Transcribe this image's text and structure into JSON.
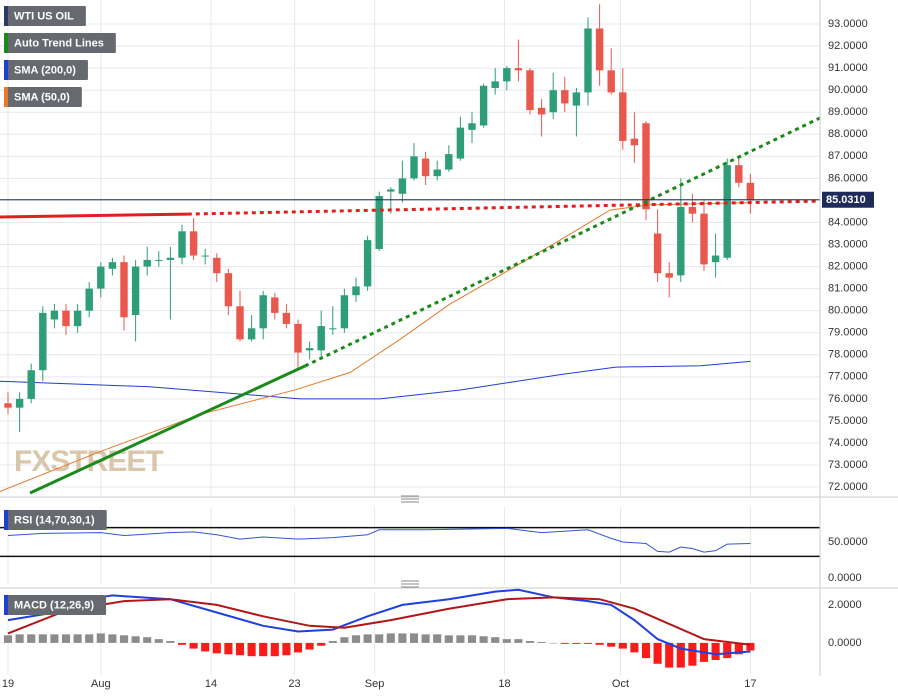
{
  "chart_data": [
    {
      "type": "candlestick",
      "title": "WTI US OIL",
      "title_color": "#2b3a67",
      "watermark": "FXSTREET",
      "grid": true,
      "up_color": "#2e9e78",
      "down_color": "#e8584c",
      "open": [
        75.8,
        75.6,
        76.0,
        77.3,
        79.6,
        80.0,
        79.3,
        80.0,
        81.0,
        81.9,
        82.2,
        79.8,
        82.0,
        82.3,
        82.3,
        82.4,
        83.6,
        82.5,
        82.4,
        81.7,
        80.2,
        78.7,
        79.2,
        80.6,
        79.9,
        79.4,
        78.2,
        78.2,
        79.2,
        79.2,
        80.7,
        81.1,
        82.8,
        85.4,
        85.3,
        86.0,
        86.9,
        86.1,
        86.4,
        86.9,
        88.2,
        88.4,
        90.1,
        90.4,
        91.0,
        90.9,
        89.2,
        89.0,
        90.0,
        89.3,
        89.9,
        92.8,
        90.9,
        89.9,
        87.8,
        88.5,
        83.5,
        81.7,
        81.6,
        84.7,
        84.4,
        82.2,
        82.4,
        86.6,
        85.8
      ],
      "high": [
        76.3,
        76.3,
        77.6,
        80.2,
        80.3,
        80.3,
        80.3,
        81.3,
        82.2,
        82.4,
        82.5,
        82.3,
        82.9,
        82.7,
        82.9,
        83.9,
        84.2,
        82.8,
        82.6,
        81.9,
        80.9,
        79.8,
        80.9,
        80.8,
        80.3,
        79.6,
        78.6,
        80.0,
        80.2,
        81.0,
        81.5,
        83.4,
        85.4,
        85.6,
        86.8,
        87.6,
        87.2,
        86.8,
        87.5,
        88.8,
        89.0,
        90.3,
        91.0,
        91.1,
        92.3,
        91.0,
        89.6,
        90.8,
        90.6,
        90.1,
        93.3,
        93.9,
        91.9,
        91.0,
        89.0,
        88.6,
        84.6,
        82.2,
        86.0,
        85.3,
        85.0,
        83.5,
        86.9,
        87.0,
        86.2
      ],
      "low": [
        75.3,
        74.5,
        75.8,
        76.8,
        79.2,
        78.9,
        79.0,
        79.7,
        80.6,
        81.6,
        79.1,
        78.6,
        81.6,
        82.0,
        79.6,
        82.1,
        82.3,
        82.1,
        81.3,
        79.8,
        78.6,
        78.6,
        78.7,
        79.6,
        79.2,
        77.4,
        77.8,
        77.9,
        78.9,
        79.0,
        80.4,
        80.9,
        82.7,
        84.4,
        84.9,
        85.9,
        85.7,
        85.9,
        86.3,
        86.8,
        87.6,
        88.3,
        89.8,
        90.0,
        90.4,
        88.9,
        87.9,
        88.7,
        89.0,
        87.9,
        89.3,
        90.2,
        89.8,
        87.3,
        86.7,
        84.1,
        81.3,
        80.6,
        81.3,
        84.0,
        81.8,
        81.5,
        82.3,
        85.6,
        84.4
      ],
      "close": [
        75.6,
        76.0,
        77.3,
        79.9,
        80.0,
        79.3,
        80.0,
        81.0,
        82.0,
        82.2,
        79.7,
        82.0,
        82.3,
        82.3,
        82.4,
        83.6,
        82.5,
        82.5,
        81.7,
        80.2,
        78.7,
        79.2,
        80.7,
        79.9,
        79.4,
        78.1,
        78.3,
        79.3,
        79.2,
        80.7,
        81.1,
        83.2,
        85.2,
        85.5,
        86.0,
        87.0,
        86.1,
        86.4,
        87.1,
        88.3,
        88.5,
        90.2,
        90.4,
        91.0,
        90.9,
        89.1,
        88.9,
        90.0,
        89.4,
        89.9,
        92.8,
        90.9,
        89.9,
        87.7,
        87.5,
        84.6,
        81.7,
        81.5,
        84.7,
        84.4,
        82.1,
        82.5,
        86.6,
        85.8,
        85.0
      ],
      "xlim": [
        -0.69,
        70
      ],
      "xticks": [
        {
          "value": 0,
          "label": "19"
        },
        {
          "value": 8,
          "label": "Aug"
        },
        {
          "value": 17.5,
          "label": "14"
        },
        {
          "value": 24.7,
          "label": "23"
        },
        {
          "value": 31.6,
          "label": "Sep"
        },
        {
          "value": 42.8,
          "label": "18"
        },
        {
          "value": 52.8,
          "label": "Oct"
        },
        {
          "value": 64,
          "label": "17"
        }
      ],
      "ylim": [
        71.64,
        94.09
      ],
      "yticks": [
        {
          "value": 72,
          "label": "72.0000"
        },
        {
          "value": 73,
          "label": "73.0000"
        },
        {
          "value": 74,
          "label": "74.0000"
        },
        {
          "value": 75,
          "label": "75.0000"
        },
        {
          "value": 76,
          "label": "76.0000"
        },
        {
          "value": 77,
          "label": "77.0000"
        },
        {
          "value": 78,
          "label": "78.0000"
        },
        {
          "value": 79,
          "label": "79.0000"
        },
        {
          "value": 80,
          "label": "80.0000"
        },
        {
          "value": 81,
          "label": "81.0000"
        },
        {
          "value": 82,
          "label": "82.0000"
        },
        {
          "value": 83,
          "label": "83.0000"
        },
        {
          "value": 84,
          "label": "84.0000"
        },
        {
          "value": 85,
          "label": "85.0000"
        },
        {
          "value": 86,
          "label": "86.0000"
        },
        {
          "value": 87,
          "label": "87.0000"
        },
        {
          "value": 88,
          "label": "88.0000"
        },
        {
          "value": 89,
          "label": "89.0000"
        },
        {
          "value": 90,
          "label": "90.0000"
        },
        {
          "value": 91,
          "label": "91.0000"
        },
        {
          "value": 92,
          "label": "92.0000"
        },
        {
          "value": 93,
          "label": "93.0000"
        }
      ],
      "last_price": {
        "value": 85.031,
        "label": "85.0310",
        "color": "#1c2b5a"
      },
      "trend_lines": {
        "name": "Auto Trend Lines",
        "color": "#1a8a1a",
        "segments": [
          {
            "color": "#1a8a1a",
            "dashed": false,
            "x": [
              1.9,
              25.6
            ],
            "values": [
              71.73,
              77.49
            ]
          },
          {
            "color": "#1a8a1a",
            "dashed": true,
            "x": [
              25.6,
              70
            ],
            "values": [
              77.49,
              88.74
            ]
          },
          {
            "color": "#e02020",
            "dashed": false,
            "x": [
              -0.69,
              15.5
            ],
            "values": [
              84.25,
              84.38
            ]
          },
          {
            "color": "#e02020",
            "dashed": true,
            "x": [
              15.5,
              70
            ],
            "values": [
              84.38,
              84.97
            ]
          }
        ]
      },
      "series": [
        {
          "name": "SMA (200,0)",
          "color": "#1f3fcf",
          "x": [
            -0.69,
            12.2,
            25.2,
            32.1,
            39,
            47.6,
            52.4,
            59.7,
            64
          ],
          "values": [
            76.8,
            76.55,
            76.0,
            76.0,
            76.4,
            77.1,
            77.44,
            77.5,
            77.7
          ]
        },
        {
          "name": "SMA (50,0)",
          "color": "#e8782a",
          "x": [
            -0.69,
            7.9,
            16.6,
            24.7,
            29.5,
            33.8,
            38.1,
            42.4,
            47.6,
            51.9,
            55.3,
            64
          ],
          "values": [
            71.8,
            73.6,
            75.3,
            76.4,
            77.2,
            78.7,
            80.3,
            81.6,
            83.2,
            84.56,
            84.8,
            84.9
          ]
        }
      ]
    },
    {
      "type": "line",
      "title": "RSI (14,70,30,1)",
      "title_color": "#1f3fcf",
      "ylim": [
        -9.7,
        98.6
      ],
      "yticks": [
        {
          "value": 50,
          "label": "50.0000"
        },
        {
          "value": 0,
          "label": "0.0000"
        }
      ],
      "levels": [
        70,
        30
      ],
      "series": [
        {
          "color": "#2f55d4",
          "x": [
            0,
            3,
            8,
            10,
            14,
            16,
            18,
            20,
            22,
            25,
            28,
            31,
            32,
            36,
            40,
            43,
            46,
            50,
            52,
            53,
            55,
            56,
            57,
            58,
            59,
            60,
            61,
            62,
            64
          ],
          "values": [
            59,
            62,
            63,
            59,
            63,
            64,
            60,
            54,
            57,
            54,
            56,
            60,
            67,
            67,
            68,
            69,
            63,
            67,
            55,
            50,
            48,
            37,
            36,
            43,
            41,
            36,
            38,
            47,
            48
          ]
        }
      ]
    },
    {
      "type": "macd",
      "title": "MACD (12,26,9)",
      "title_color": "#1f3fcf",
      "ylim": [
        -1.69,
        2.68
      ],
      "yticks": [
        {
          "value": 2,
          "label": "2.0000"
        },
        {
          "value": 0,
          "label": "0.0000"
        }
      ],
      "positive_color": "#8c8c8c",
      "negative_color": "#ff1a1a",
      "histogram": [
        0.4,
        0.45,
        0.45,
        0.45,
        0.45,
        0.45,
        0.45,
        0.45,
        0.5,
        0.45,
        0.4,
        0.35,
        0.3,
        0.2,
        0.1,
        -0.1,
        -0.3,
        -0.45,
        -0.55,
        -0.6,
        -0.65,
        -0.7,
        -0.7,
        -0.7,
        -0.65,
        -0.5,
        -0.35,
        -0.15,
        0.1,
        0.3,
        0.4,
        0.45,
        0.45,
        0.5,
        0.5,
        0.5,
        0.45,
        0.45,
        0.4,
        0.4,
        0.4,
        0.35,
        0.3,
        0.2,
        0.2,
        0.1,
        0.05,
        0.0,
        -0.05,
        -0.05,
        -0.05,
        -0.1,
        -0.2,
        -0.3,
        -0.5,
        -0.8,
        -1.1,
        -1.3,
        -1.3,
        -1.2,
        -1.0,
        -0.9,
        -0.8,
        -0.6,
        -0.4
      ],
      "series": [
        {
          "color": "#1f3fdf",
          "x": [
            0,
            4,
            8,
            9,
            14,
            18,
            22,
            25,
            28,
            31,
            34,
            38,
            42,
            44,
            47,
            50,
            52,
            54,
            56,
            58,
            61,
            64
          ],
          "values": [
            1.2,
            1.6,
            2.4,
            2.5,
            2.3,
            1.6,
            0.9,
            0.6,
            0.7,
            1.4,
            2.0,
            2.3,
            2.7,
            2.8,
            2.4,
            2.2,
            2.0,
            1.2,
            0.2,
            -0.3,
            -0.6,
            -0.45
          ]
        },
        {
          "color": "#b01818",
          "x": [
            0,
            5,
            10,
            14,
            18,
            22,
            26,
            29,
            33,
            38,
            43,
            47,
            51,
            54,
            57,
            60,
            64
          ],
          "values": [
            0.5,
            1.7,
            2.2,
            2.3,
            2.0,
            1.4,
            0.9,
            0.8,
            1.2,
            1.8,
            2.3,
            2.4,
            2.3,
            1.8,
            1.0,
            0.2,
            -0.1
          ]
        }
      ]
    }
  ]
}
